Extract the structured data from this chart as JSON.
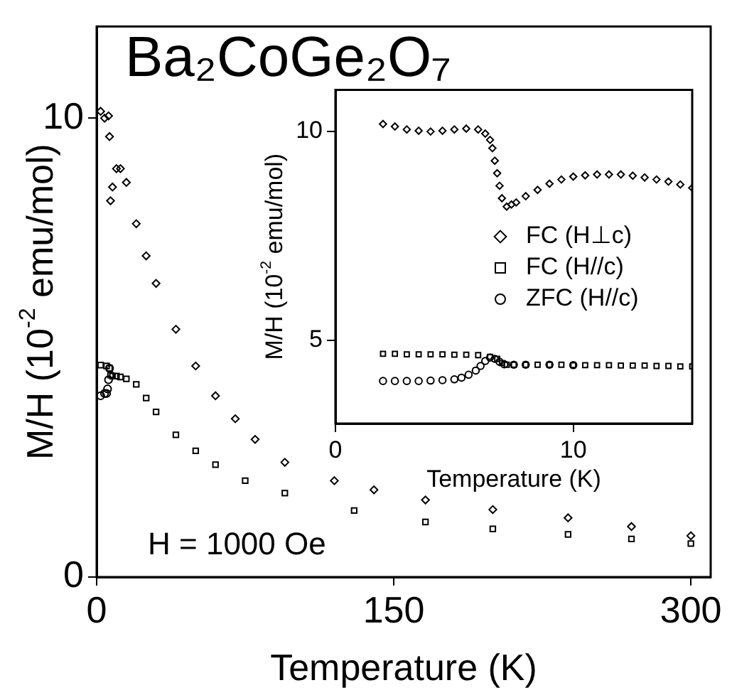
{
  "chart_data": [
    {
      "type": "scatter",
      "title": "Ba₂CoGe₂O₇",
      "xlabel": "Temperature (K)",
      "ylabel": "M/H (10$^{-2}$ emu/mol)",
      "xlim": [
        0,
        310
      ],
      "xticks": [
        0,
        150,
        300
      ],
      "ylim": [
        0,
        12
      ],
      "yticks": [
        0,
        10
      ],
      "annotations": [
        "H = 1000 Oe"
      ],
      "series": [
        {
          "marker": "diamond",
          "color": "#000000",
          "x": [
            2,
            4,
            6,
            6.5,
            7,
            8,
            10,
            12,
            15,
            20,
            25,
            30,
            40,
            50,
            60,
            70,
            80,
            95,
            120,
            140,
            166,
            200,
            238,
            270,
            300
          ],
          "values": [
            10.15,
            10.0,
            10.05,
            9.6,
            8.2,
            8.5,
            8.9,
            8.9,
            8.6,
            7.7,
            7.0,
            6.4,
            5.4,
            4.6,
            3.95,
            3.45,
            3.0,
            2.5,
            2.1,
            1.9,
            1.68,
            1.47,
            1.29,
            1.1,
            0.9
          ]
        },
        {
          "marker": "square",
          "color": "#000000",
          "x": [
            2,
            5,
            6.5,
            7,
            8,
            10,
            12,
            15,
            20,
            25,
            30,
            40,
            50,
            60,
            75,
            95,
            130,
            166,
            200,
            238,
            270,
            300
          ],
          "values": [
            4.62,
            4.6,
            4.55,
            4.4,
            4.38,
            4.38,
            4.36,
            4.32,
            4.2,
            3.9,
            3.6,
            3.1,
            2.75,
            2.45,
            2.1,
            1.83,
            1.45,
            1.2,
            1.05,
            0.93,
            0.83,
            0.73
          ]
        },
        {
          "marker": "circle",
          "color": "#000000",
          "x": [
            2,
            4,
            5,
            5.5,
            6,
            6.5
          ],
          "values": [
            3.95,
            4.0,
            4.0,
            4.1,
            4.3,
            4.55
          ]
        }
      ]
    },
    {
      "type": "scatter",
      "xlabel": "Temperature (K)",
      "ylabel": "M/H (10$^{-2}$ emu/mol)",
      "xlim": [
        0,
        15
      ],
      "xticks": [
        0,
        10
      ],
      "ylim": [
        3,
        11
      ],
      "yticks": [
        5,
        10
      ],
      "legend": "right",
      "series": [
        {
          "name": "FC (H⊥c)",
          "marker": "diamond",
          "color": "#000000",
          "x": [
            2,
            2.5,
            3,
            3.5,
            4,
            4.5,
            5,
            5.5,
            6,
            6.3,
            6.5,
            6.6,
            6.7,
            6.8,
            6.9,
            7.0,
            7.2,
            7.4,
            7.6,
            8,
            8.5,
            9,
            9.5,
            10,
            10.5,
            11,
            11.5,
            12,
            12.5,
            13,
            13.5,
            14,
            14.5,
            15
          ],
          "values": [
            10.18,
            10.12,
            10.05,
            10.02,
            10.0,
            10.02,
            10.05,
            10.07,
            10.05,
            9.95,
            9.8,
            9.6,
            9.3,
            9.0,
            8.7,
            8.4,
            8.2,
            8.25,
            8.3,
            8.45,
            8.6,
            8.75,
            8.85,
            8.92,
            8.95,
            8.97,
            8.97,
            8.97,
            8.94,
            8.9,
            8.85,
            8.8,
            8.73,
            8.65
          ]
        },
        {
          "name": "FC (H//c)",
          "marker": "square",
          "color": "#000000",
          "x": [
            2,
            2.5,
            3,
            3.5,
            4,
            4.5,
            5,
            5.5,
            6,
            6.5,
            6.8,
            7.0,
            7.2,
            7.5,
            8,
            8.5,
            9,
            9.5,
            10,
            10.5,
            11,
            11.5,
            12,
            12.5,
            13,
            13.5,
            14,
            14.5,
            15
          ],
          "values": [
            4.67,
            4.67,
            4.66,
            4.66,
            4.66,
            4.66,
            4.65,
            4.65,
            4.64,
            4.6,
            4.55,
            4.45,
            4.41,
            4.41,
            4.41,
            4.41,
            4.41,
            4.41,
            4.4,
            4.4,
            4.4,
            4.4,
            4.39,
            4.39,
            4.39,
            4.38,
            4.38,
            4.37,
            4.37
          ]
        },
        {
          "name": "ZFC (H//c)",
          "marker": "circle",
          "color": "#000000",
          "x": [
            2,
            2.5,
            3,
            3.5,
            4,
            4.5,
            5,
            5.3,
            5.6,
            5.9,
            6.1,
            6.3,
            6.5,
            6.7,
            6.9,
            7.1,
            7.5,
            8,
            9,
            10
          ],
          "values": [
            4.02,
            4.02,
            4.02,
            4.02,
            4.03,
            4.04,
            4.06,
            4.1,
            4.17,
            4.27,
            4.38,
            4.5,
            4.58,
            4.55,
            4.48,
            4.42,
            4.41,
            4.41,
            4.41,
            4.4
          ]
        }
      ]
    }
  ]
}
